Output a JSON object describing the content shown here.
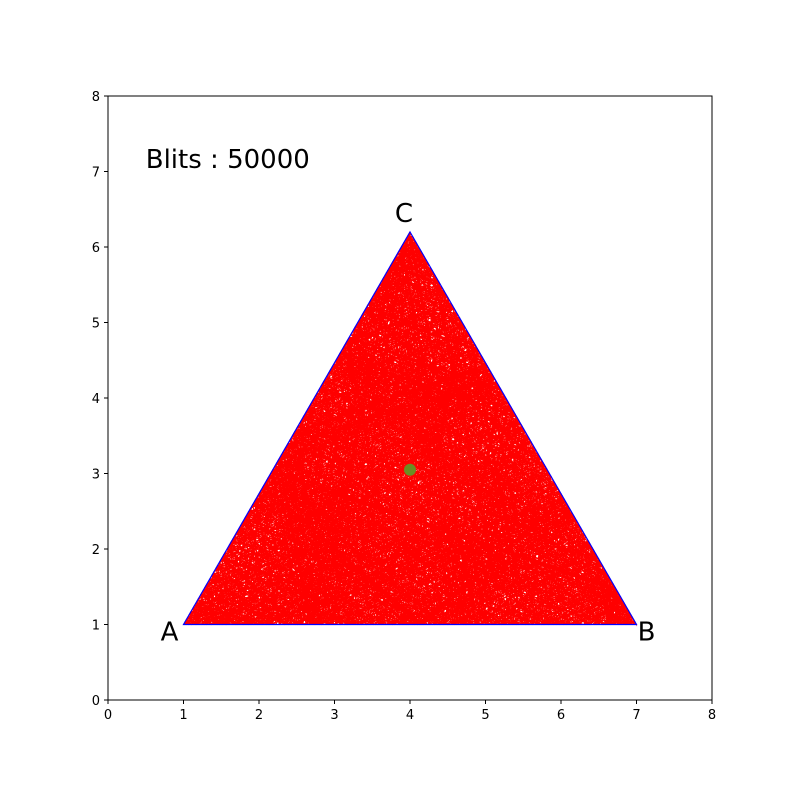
{
  "chart_data": {
    "type": "line",
    "title": "",
    "xlabel": "",
    "ylabel": "",
    "xlim": [
      0,
      8
    ],
    "ylim": [
      0,
      8
    ],
    "xticks": [
      "0",
      "1",
      "2",
      "3",
      "4",
      "5",
      "6",
      "7",
      "8"
    ],
    "yticks": [
      "0",
      "1",
      "2",
      "3",
      "4",
      "5",
      "6",
      "7",
      "8"
    ],
    "grid": false,
    "annotation": {
      "text": "Blits : 50000",
      "x": 0.5,
      "y": 7.15
    },
    "triangle": {
      "vertices": [
        {
          "label": "A",
          "x": 1,
          "y": 1
        },
        {
          "label": "B",
          "x": 7,
          "y": 1
        },
        {
          "label": "C",
          "x": 4,
          "y": 6.2
        }
      ],
      "color": "#0000ff"
    },
    "trajectory": {
      "color": "#ff0000",
      "start": {
        "x": 4.0,
        "y": 3.05
      }
    },
    "start_marker": {
      "x": 4.0,
      "y": 3.05,
      "color": "#6b8e23"
    }
  }
}
